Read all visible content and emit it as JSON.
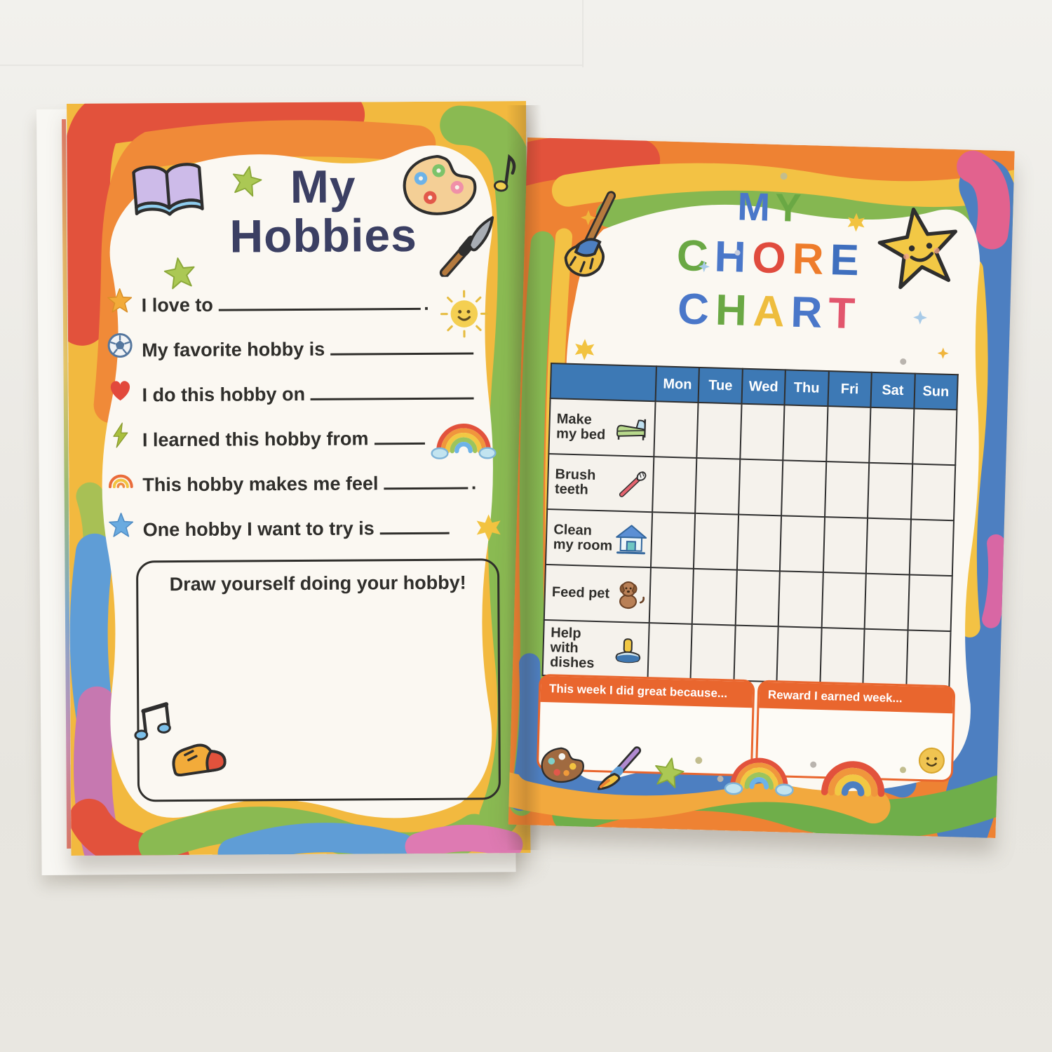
{
  "colors": {
    "paper": "#fbf8f2",
    "title_navy": "#3b3f63",
    "text_dark": "#2f2e2b",
    "table_header_blue": "#3d79b5",
    "note_box_orange": "#e9662e",
    "border_red": "#e2523c",
    "border_orange": "#f08a38",
    "border_yellow": "#f2c843",
    "border_green": "#8aba52",
    "border_blue": "#5f9dd6",
    "border_purple": "#c678b0",
    "border_pink": "#de7ab2"
  },
  "left_page": {
    "title_line1": "My",
    "title_line2": "Hobbies",
    "prompts": [
      {
        "icon": "star-gold",
        "text": "I love to",
        "suffix": "."
      },
      {
        "icon": "soccer-ball",
        "text": "My favorite hobby is",
        "suffix": ""
      },
      {
        "icon": "heart",
        "text": "I do this hobby on",
        "suffix": ""
      },
      {
        "icon": "lightning",
        "text": "I learned this hobby from",
        "suffix": ""
      },
      {
        "icon": "rainbow-small",
        "text": "This hobby makes me feel",
        "suffix": "."
      },
      {
        "icon": "star-blue",
        "text": "One hobby I want to try is",
        "suffix": ""
      }
    ],
    "drawing_box_label": "Draw yourself doing your hobby!",
    "decor_icons": [
      "open-book",
      "star-green",
      "star-green",
      "palette",
      "music-note",
      "paintbrush",
      "sun",
      "rainbow-cloud",
      "sparkle-star6",
      "music-notes",
      "shoe"
    ]
  },
  "right_page": {
    "title": [
      [
        {
          "ch": "M",
          "color": "#4a77c9"
        },
        {
          "ch": "Y",
          "color": "#6aa844"
        }
      ],
      [
        {
          "ch": "C",
          "color": "#6aa844"
        },
        {
          "ch": "H",
          "color": "#4a77c9"
        },
        {
          "ch": "O",
          "color": "#e04b3e"
        },
        {
          "ch": "R",
          "color": "#ee7c2b"
        },
        {
          "ch": "E",
          "color": "#3f6fbe"
        }
      ],
      [
        {
          "ch": "C",
          "color": "#4a77c9"
        },
        {
          "ch": "H",
          "color": "#6aa844"
        },
        {
          "ch": "A",
          "color": "#eebd3e"
        },
        {
          "ch": "R",
          "color": "#4a77c9"
        },
        {
          "ch": "T",
          "color": "#e2566d"
        }
      ]
    ],
    "table": {
      "days": [
        "Mon",
        "Tue",
        "Wed",
        "Thu",
        "Fri",
        "Sat",
        "Sun"
      ],
      "rows": [
        {
          "label": "Make my bed",
          "icon": "bed"
        },
        {
          "label": "Brush teeth",
          "icon": "toothbrush"
        },
        {
          "label": "Clean my room",
          "icon": "house"
        },
        {
          "label": "Feed pet",
          "icon": "dog"
        },
        {
          "label": "Help with dishes",
          "icon": "sponge"
        }
      ]
    },
    "boxes": [
      {
        "label": "This week I did great because..."
      },
      {
        "label": "Reward I earned week...",
        "icon": "smiley"
      }
    ],
    "decor_icons": [
      "broom",
      "star-smiley",
      "sparkle4",
      "sparkle-star6",
      "palette-brown",
      "paintbrush-purple",
      "star-green",
      "rainbow-cloud",
      "rainbow-plain",
      "smiley"
    ]
  }
}
